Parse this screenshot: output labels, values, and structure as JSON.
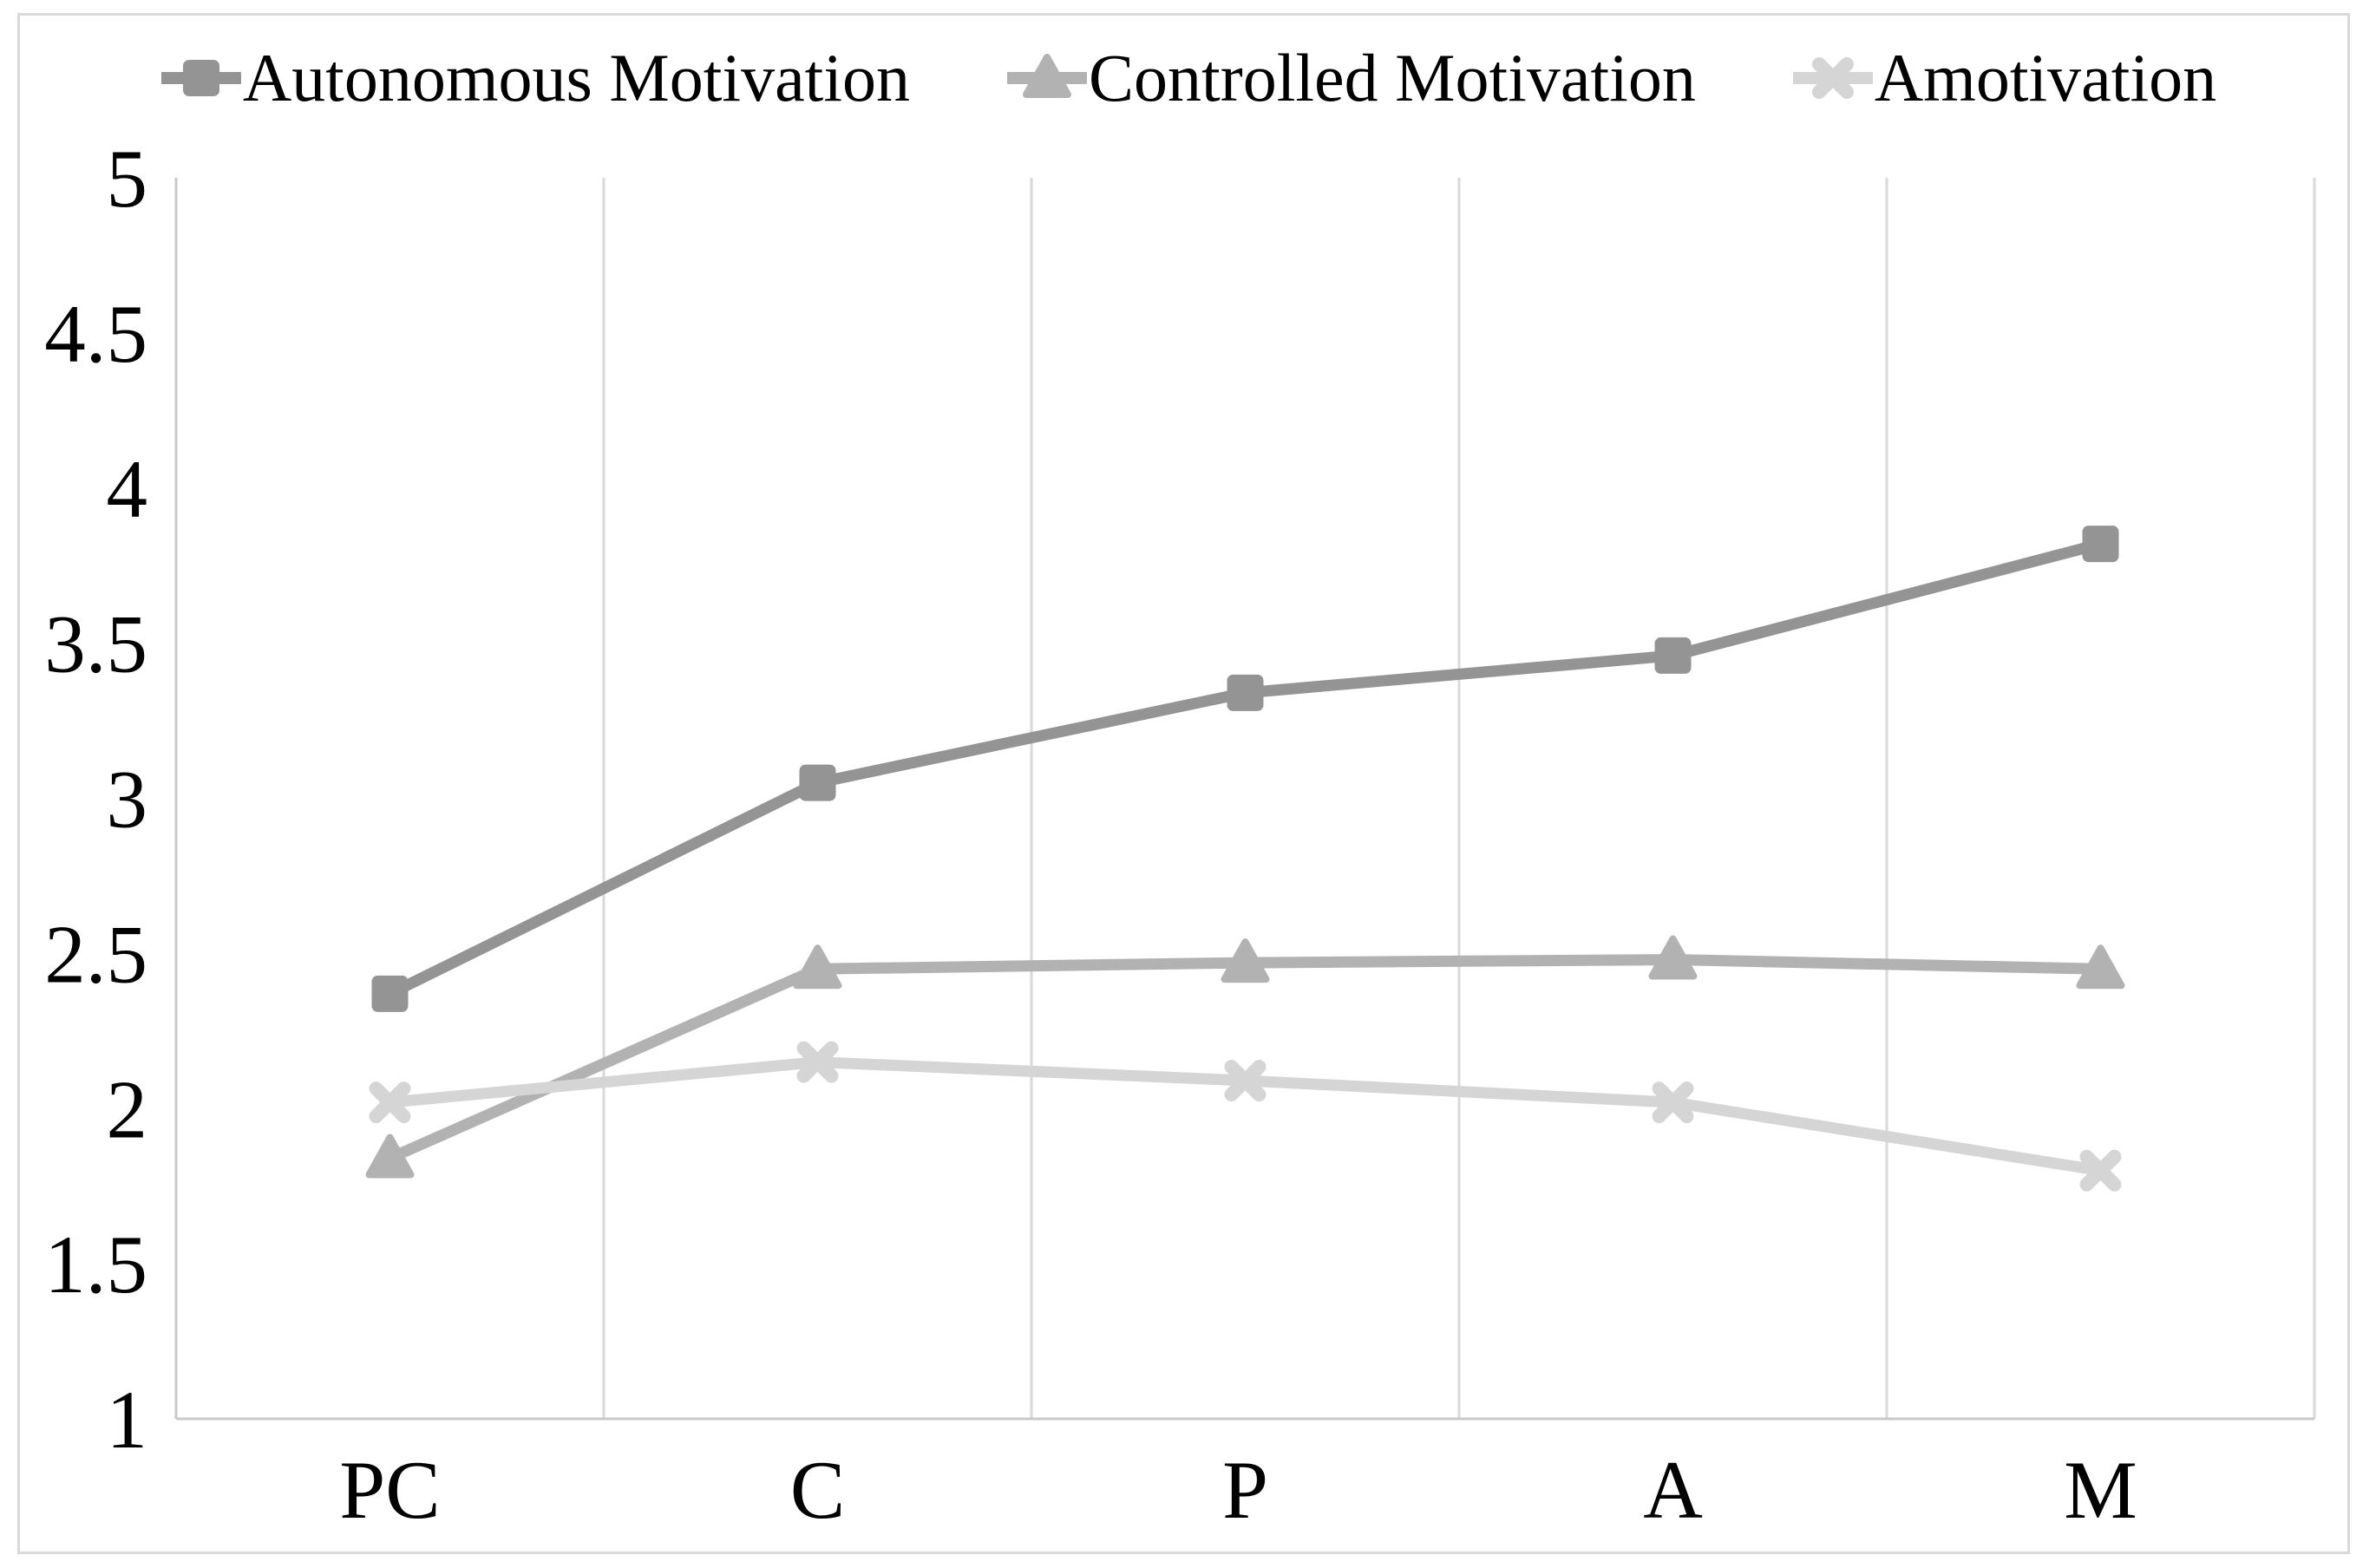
{
  "figure": {
    "background": "#ffffff",
    "border_color": "#d9d9d9"
  },
  "chart_data": {
    "type": "line",
    "title": "",
    "xlabel": "",
    "ylabel": "",
    "categories": [
      "PC",
      "C",
      "P",
      "A",
      "M"
    ],
    "series": [
      {
        "name": "Autonomous Motivation",
        "values": [
          2.37,
          3.05,
          3.34,
          3.46,
          3.82
        ],
        "color": "#949494",
        "marker": "square"
      },
      {
        "name": "Controlled Motivation",
        "values": [
          1.84,
          2.45,
          2.47,
          2.48,
          2.45
        ],
        "color": "#b2b2b2",
        "marker": "triangle"
      },
      {
        "name": "Amotivation",
        "values": [
          2.02,
          2.15,
          2.09,
          2.02,
          1.8
        ],
        "color": "#d5d5d5",
        "marker": "x"
      }
    ],
    "ylim": [
      1,
      5
    ],
    "yticks": [
      5,
      4.5,
      4,
      3.5,
      3,
      2.5,
      2,
      1.5,
      1
    ],
    "ytick_labels": [
      "5",
      "4.5",
      "4",
      "3.5",
      "3",
      "2.5",
      "2",
      "1.5",
      "1"
    ],
    "grid": "vertical-only",
    "gridline_color": "#d9d9d9",
    "axis_color": "#c9c9c9",
    "text_color": "#000000",
    "legend_position": "top"
  }
}
